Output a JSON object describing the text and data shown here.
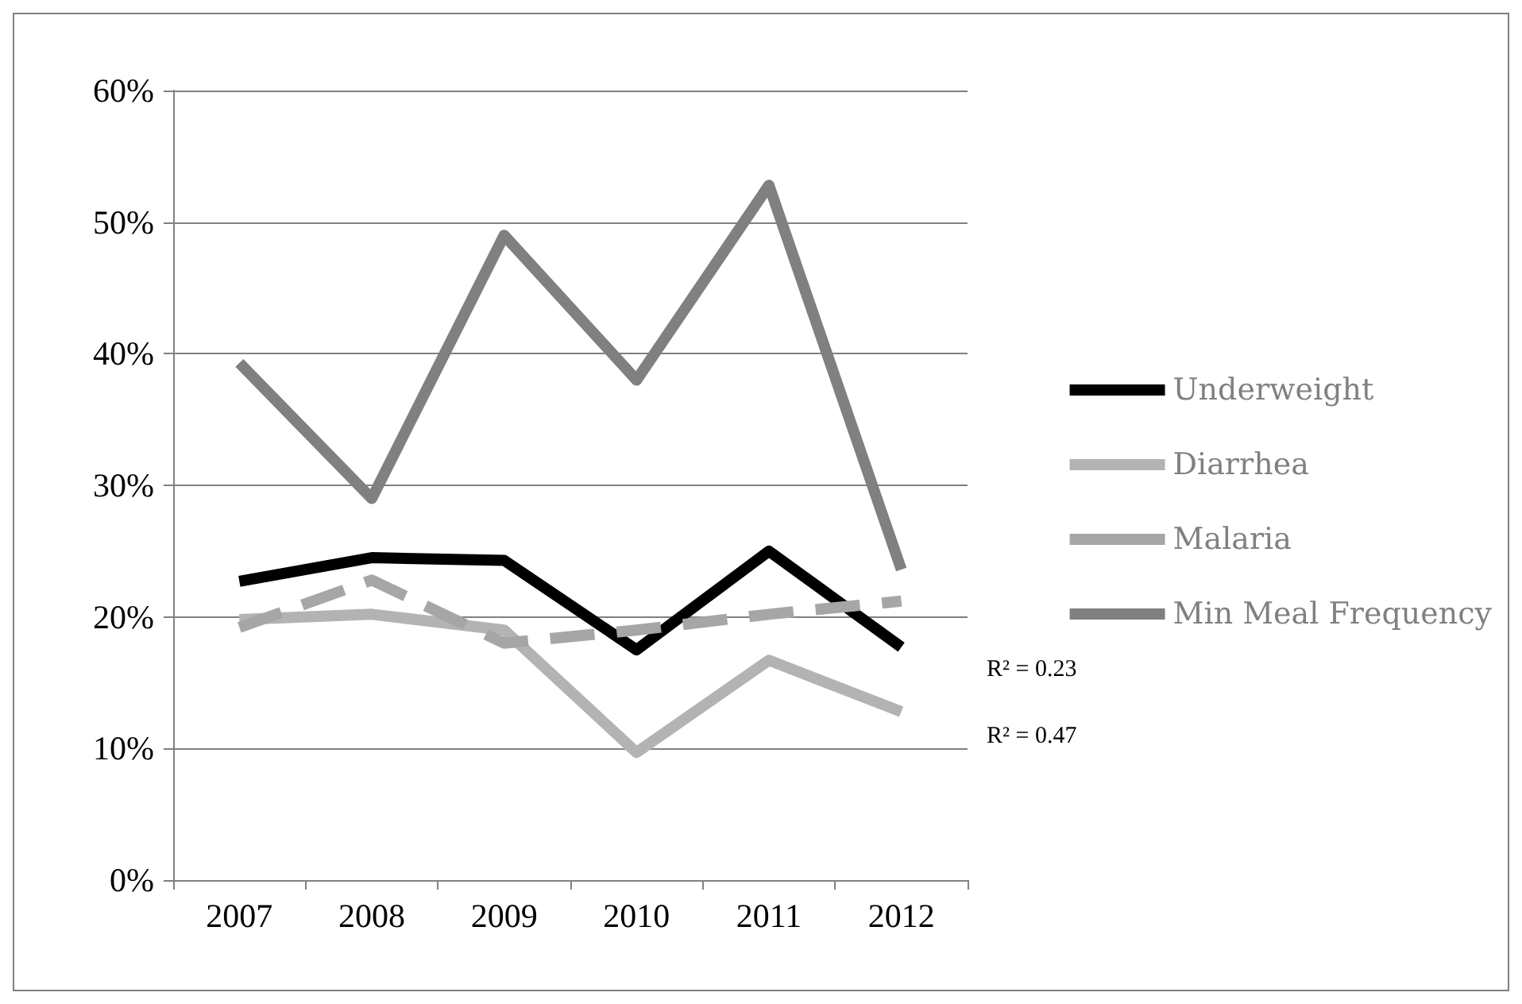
{
  "chart_data": {
    "type": "line",
    "categories": [
      "2007",
      "2008",
      "2009",
      "2010",
      "2011",
      "2012"
    ],
    "series": [
      {
        "name": "Underweight",
        "color": "#000000",
        "values": [
          22.7,
          24.5,
          24.3,
          17.5,
          25,
          17.7
        ]
      },
      {
        "name": "Diarrhea",
        "color": "#b3b3b3",
        "values": [
          19.8,
          20.2,
          19,
          9.7,
          16.7,
          12.8
        ]
      },
      {
        "name": "Malaria",
        "color": "#a6a6a6",
        "line_style": "dashed",
        "values": [
          19.2,
          22.8,
          18,
          19,
          20.2,
          21.2
        ]
      },
      {
        "name": "Min Meal Frequency",
        "color": "#808080",
        "values": [
          39.3,
          29,
          49,
          38,
          52.8,
          23.6
        ]
      }
    ],
    "ylim": [
      0,
      60
    ],
    "yticks": [
      {
        "value": 0,
        "label": "0%"
      },
      {
        "value": 10,
        "label": "10%"
      },
      {
        "value": 20,
        "label": "20%"
      },
      {
        "value": 30,
        "label": "30%"
      },
      {
        "value": 40,
        "label": "40%"
      },
      {
        "value": 50,
        "label": "50%"
      },
      {
        "value": 60,
        "label": "60%"
      }
    ],
    "grid": "y",
    "legend": "right",
    "marker": "none",
    "line_style": "solid",
    "annotations": [
      "R² = 0.23",
      "R² = 0.47"
    ]
  }
}
